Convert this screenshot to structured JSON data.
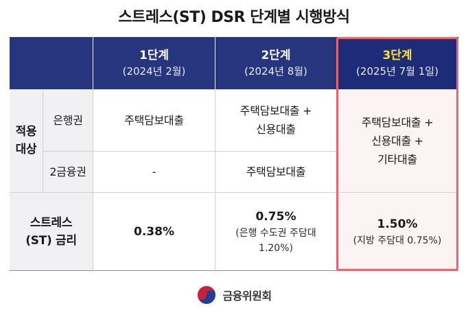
{
  "title": "스트레스(ST) DSR 단계별 시행방식",
  "table": {
    "columns": [
      {
        "stage": "1단계",
        "date": "(2024년 2월)"
      },
      {
        "stage": "2단계",
        "date": "(2024년 8월)"
      },
      {
        "stage": "3단계",
        "date": "(2025년 7월 1일)"
      }
    ],
    "row_group_label": "적용\n대상",
    "rows": [
      {
        "label": "은행권",
        "cells": [
          "주택담보대출",
          "주택담보대출 +\n신용대출"
        ]
      },
      {
        "label": "2금융권",
        "cells": [
          "-",
          "주택담보대출"
        ]
      }
    ],
    "stage3_target": "주택담보대출 +\n신용대출 +\n기타대출",
    "rate_row": {
      "label": "스트레스\n(ST) 금리",
      "stage1": {
        "value": "0.38%",
        "note": ""
      },
      "stage2": {
        "value": "0.75%",
        "note": "(은행 수도권 주담대\n1.20%)"
      },
      "stage3": {
        "value": "1.50%",
        "note": "(지방 주담대 0.75%)"
      }
    }
  },
  "footer": {
    "org": "금융위원회"
  },
  "colors": {
    "header": "#26357e",
    "stage3_label": "#ffe233",
    "highlight": "#e8646e"
  }
}
